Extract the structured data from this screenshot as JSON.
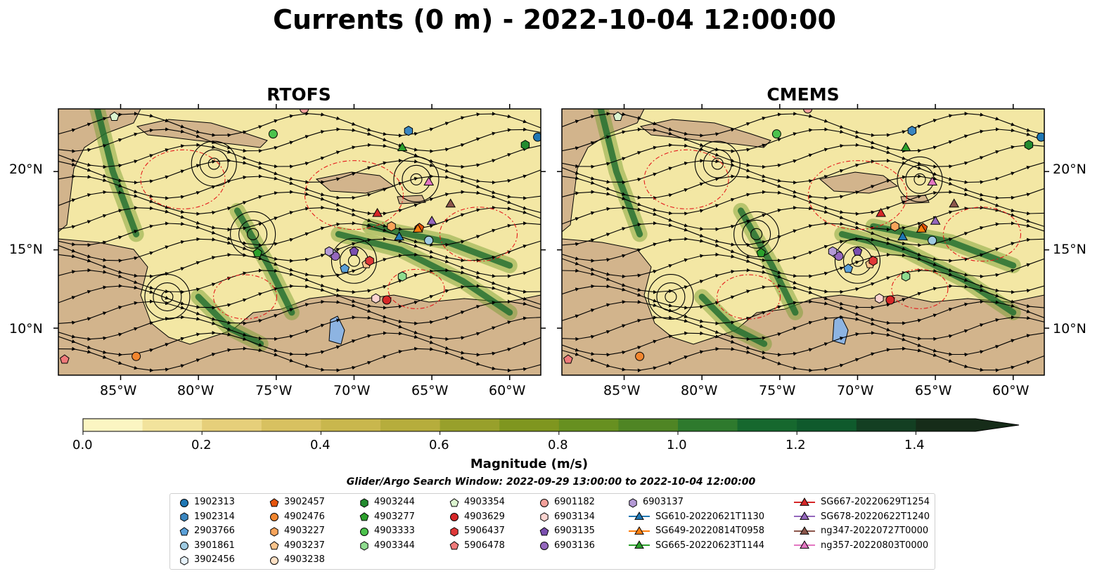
{
  "title": "Currents (0 m) - 2022-10-04 12:00:00",
  "panels": [
    {
      "title": "RTOFS"
    },
    {
      "title": "CMEMS"
    }
  ],
  "lat_labels": [
    "20°N",
    "15°N",
    "10°N"
  ],
  "lon_labels": [
    "85°W",
    "80°W",
    "75°W",
    "70°W",
    "65°W",
    "60°W"
  ],
  "map_extent": {
    "lon": [
      -89,
      -58
    ],
    "lat": [
      7,
      24
    ]
  },
  "colorbar": {
    "label": "Magnitude (m/s)",
    "ticks": [
      "0.0",
      "0.2",
      "0.4",
      "0.6",
      "0.8",
      "1.0",
      "1.2",
      "1.4"
    ],
    "range": [
      0,
      1.5
    ],
    "colors": [
      "#fbf5c2",
      "#f2e39c",
      "#e6cf7a",
      "#d8c160",
      "#c9b74d",
      "#b6ad3c",
      "#98a02b",
      "#7f961f",
      "#679020",
      "#4f8524",
      "#2e7a2d",
      "#16682e",
      "#0f5a2c",
      "#133f22",
      "#162c19"
    ]
  },
  "search_window": "Glider/Argo Search Window: 2022-09-29 13:00:00 to 2022-10-04 12:00:00",
  "legend": [
    {
      "label": "1902313",
      "marker": "circle",
      "color": "#1f77b4"
    },
    {
      "label": "1902314",
      "marker": "hexagon",
      "color": "#3a86c0"
    },
    {
      "label": "2903766",
      "marker": "pentagon",
      "color": "#5aa0d8"
    },
    {
      "label": "3901861",
      "marker": "circle",
      "color": "#9ecae1"
    },
    {
      "label": "3902456",
      "marker": "hexagon",
      "color": "#e6f2fb"
    },
    {
      "label": "3902457",
      "marker": "pentagon",
      "color": "#e6550d"
    },
    {
      "label": "4902476",
      "marker": "circle",
      "color": "#f2862f"
    },
    {
      "label": "4903227",
      "marker": "hexagon",
      "color": "#f8a45a"
    },
    {
      "label": "4903237",
      "marker": "pentagon",
      "color": "#fbc48c"
    },
    {
      "label": "4903238",
      "marker": "circle",
      "color": "#fde0c4"
    },
    {
      "label": "4903244",
      "marker": "hexagon",
      "color": "#238b2f"
    },
    {
      "label": "4903277",
      "marker": "pentagon",
      "color": "#2ca02c"
    },
    {
      "label": "4903333",
      "marker": "circle",
      "color": "#4cc24c"
    },
    {
      "label": "4903344",
      "marker": "hexagon",
      "color": "#8fdc8f"
    },
    {
      "label": "4903354",
      "marker": "pentagon",
      "color": "#dcf5d0"
    },
    {
      "label": "4903629",
      "marker": "circle",
      "color": "#d62728"
    },
    {
      "label": "5906437",
      "marker": "hexagon",
      "color": "#e03838"
    },
    {
      "label": "5906478",
      "marker": "pentagon",
      "color": "#f07a7a"
    },
    {
      "label": "6901182",
      "marker": "circle",
      "color": "#f4a09a"
    },
    {
      "label": "6903134",
      "marker": "hexagon",
      "color": "#fcd4d0"
    },
    {
      "label": "6903135",
      "marker": "pentagon",
      "color": "#7b4fb0"
    },
    {
      "label": "6903136",
      "marker": "circle",
      "color": "#9467bd"
    },
    {
      "label": "6903137",
      "marker": "hexagon",
      "color": "#b49ad6"
    },
    {
      "label": "SG610-20220621T1130",
      "marker": "triangle-line",
      "color": "#1f77b4"
    },
    {
      "label": "SG649-20220814T0958",
      "marker": "triangle-line",
      "color": "#ff7f0e"
    },
    {
      "label": "SG665-20220623T1144",
      "marker": "triangle-line",
      "color": "#2ca02c"
    },
    {
      "label": "SG667-20220629T1254",
      "marker": "triangle-line",
      "color": "#d62728"
    },
    {
      "label": "SG678-20220622T1240",
      "marker": "triangle-line",
      "color": "#9467bd"
    },
    {
      "label": "ng347-20220727T0000",
      "marker": "triangle-line",
      "color": "#8c564b"
    },
    {
      "label": "ng357-20220803T0000",
      "marker": "triangle-line",
      "color": "#e377c2"
    }
  ],
  "markers": [
    {
      "legend": 0,
      "lon": -58.2,
      "lat": 22.2
    },
    {
      "legend": 1,
      "lon": -66.5,
      "lat": 22.6
    },
    {
      "legend": 2,
      "lon": -70.6,
      "lat": 13.8
    },
    {
      "legend": 3,
      "lon": -65.2,
      "lat": 15.6
    },
    {
      "legend": 4,
      "lon": -71.3,
      "lat": 14.7
    },
    {
      "legend": 5,
      "lon": -65.8,
      "lat": 16.4
    },
    {
      "legend": 6,
      "lon": -84.0,
      "lat": 8.2
    },
    {
      "legend": 7,
      "lon": -67.6,
      "lat": 16.5
    },
    {
      "legend": 8,
      "lon": -69.2,
      "lat": 14.1
    },
    {
      "legend": 9,
      "lon": -73.2,
      "lat": 24.2
    },
    {
      "legend": 10,
      "lon": -59.0,
      "lat": 21.7
    },
    {
      "legend": 11,
      "lon": -76.2,
      "lat": 14.8
    },
    {
      "legend": 12,
      "lon": -75.2,
      "lat": 22.4
    },
    {
      "legend": 13,
      "lon": -66.9,
      "lat": 13.3
    },
    {
      "legend": 14,
      "lon": -85.4,
      "lat": 23.5
    },
    {
      "legend": 15,
      "lon": -67.9,
      "lat": 11.8
    },
    {
      "legend": 16,
      "lon": -69.0,
      "lat": 14.3
    },
    {
      "legend": 17,
      "lon": -88.6,
      "lat": 8.0
    },
    {
      "legend": 18,
      "lon": -73.2,
      "lat": 24.0
    },
    {
      "legend": 19,
      "lon": -68.6,
      "lat": 11.9
    },
    {
      "legend": 20,
      "lon": -70.0,
      "lat": 14.9
    },
    {
      "legend": 21,
      "lon": -71.2,
      "lat": 14.6
    },
    {
      "legend": 22,
      "lon": -71.6,
      "lat": 14.9
    },
    {
      "legend": 23,
      "lon": -67.1,
      "lat": 15.8
    },
    {
      "legend": 24,
      "lon": -65.9,
      "lat": 16.3
    },
    {
      "legend": 25,
      "lon": -66.9,
      "lat": 21.5
    },
    {
      "legend": 26,
      "lon": -68.5,
      "lat": 17.3
    },
    {
      "legend": 27,
      "lon": -65.0,
      "lat": 16.8
    },
    {
      "legend": 28,
      "lon": -63.8,
      "lat": 17.9
    },
    {
      "legend": 29,
      "lon": -65.2,
      "lat": 19.3
    }
  ]
}
